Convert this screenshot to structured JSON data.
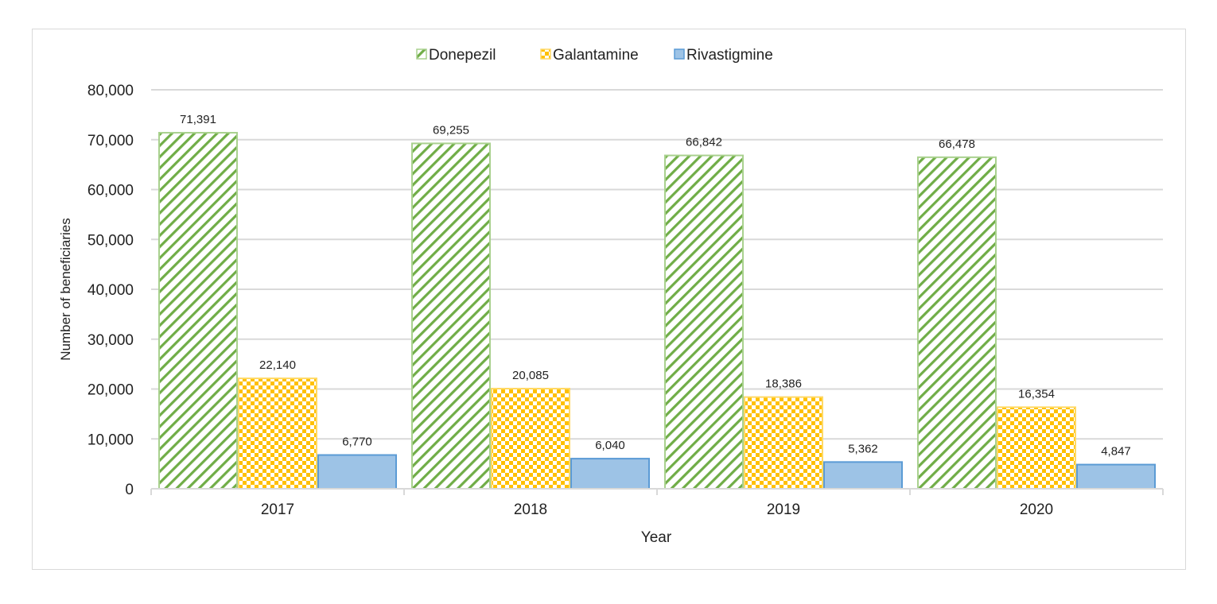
{
  "chart_data": {
    "type": "bar",
    "title": "",
    "xlabel": "Year",
    "ylabel": "Number of beneficiaries",
    "categories": [
      "2017",
      "2018",
      "2019",
      "2020"
    ],
    "series": [
      {
        "name": "Donepezil",
        "values": [
          71391,
          69255,
          66842,
          66478
        ],
        "labels": [
          "71,391",
          "69,255",
          "66,842",
          "66,478"
        ],
        "color": "#70AD47",
        "pattern": "diagonal-stripes"
      },
      {
        "name": "Galantamine",
        "values": [
          22140,
          20085,
          18386,
          16354
        ],
        "labels": [
          "22,140",
          "20,085",
          "18,386",
          "16,354"
        ],
        "color": "#FFC000",
        "pattern": "checkerboard"
      },
      {
        "name": "Rivastigmine",
        "values": [
          6770,
          6040,
          5362,
          4847
        ],
        "labels": [
          "6,770",
          "6,040",
          "5,362",
          "4,847"
        ],
        "color": "#9DC3E6",
        "pattern": "solid"
      }
    ],
    "ylim": [
      0,
      80000
    ],
    "yticks": [
      0,
      10000,
      20000,
      30000,
      40000,
      50000,
      60000,
      70000,
      80000
    ],
    "ytick_labels": [
      "0",
      "10,000",
      "20,000",
      "30,000",
      "40,000",
      "50,000",
      "60,000",
      "70,000",
      "80,000"
    ],
    "grid": true,
    "legend": "top-center"
  }
}
